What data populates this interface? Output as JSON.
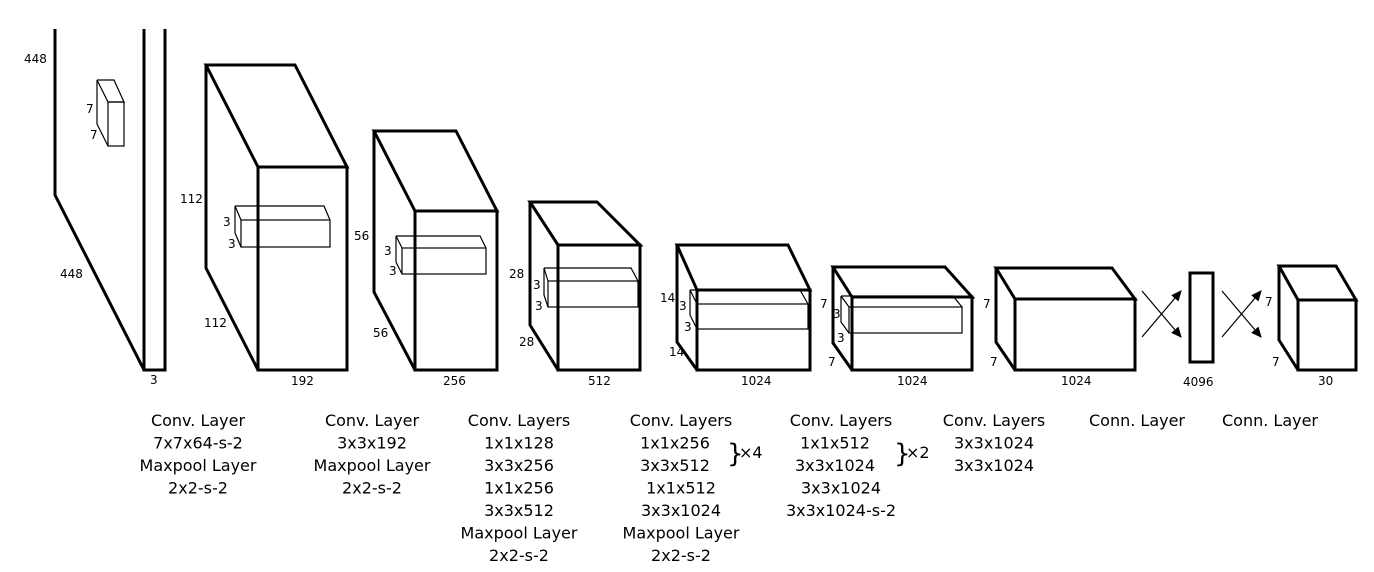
{
  "dims": {
    "b1": {
      "h": "448",
      "w": "448",
      "d": "3",
      "k1": "7",
      "k2": "7"
    },
    "b2": {
      "h": "112",
      "w": "112",
      "d": "192",
      "k1": "3",
      "k2": "3"
    },
    "b3": {
      "h": "56",
      "w": "56",
      "d": "256",
      "k1": "3",
      "k2": "3"
    },
    "b4": {
      "h": "28",
      "w": "28",
      "d": "512",
      "k1": "3",
      "k2": "3"
    },
    "b5": {
      "h": "14",
      "w": "14",
      "d": "1024",
      "k1": "3",
      "k2": "3"
    },
    "b6": {
      "h": "7",
      "w": "7",
      "d": "1024",
      "k1": "3",
      "k2": "3"
    },
    "b7": {
      "h": "7",
      "w": "7",
      "d": "1024"
    },
    "b8": {
      "d": "4096"
    },
    "b9": {
      "h": "7",
      "w": "7",
      "d": "30"
    }
  },
  "captions": [
    [
      "Conv. Layer",
      "7x7x64-s-2",
      "Maxpool Layer",
      "2x2-s-2"
    ],
    [
      "Conv. Layer",
      "3x3x192",
      "Maxpool Layer",
      "2x2-s-2"
    ],
    [
      "Conv. Layers",
      "1x1x128",
      "3x3x256",
      "1x1x256",
      "3x3x512",
      "Maxpool Layer",
      "2x2-s-2"
    ],
    [
      "Conv. Layers",
      "1x1x256",
      "3x3x512",
      "1x1x512",
      "3x3x1024",
      "Maxpool Layer",
      "2x2-s-2"
    ],
    [
      "Conv. Layers",
      "1x1x512",
      "3x3x1024",
      "3x3x1024",
      "3x3x1024-s-2"
    ],
    [
      "Conv. Layers",
      "3x3x1024",
      "3x3x1024"
    ],
    [
      "Conn. Layer"
    ],
    [
      "Conn. Layer"
    ]
  ],
  "repeats": {
    "group4": "×4",
    "group5": "×2"
  }
}
